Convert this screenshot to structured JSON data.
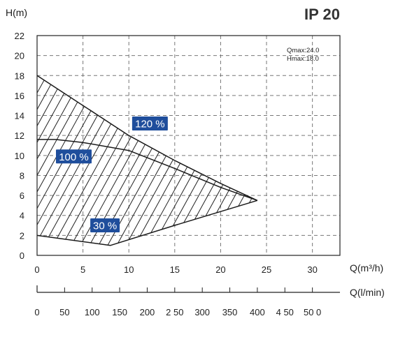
{
  "chart_data": {
    "type": "area",
    "title": "IP 20",
    "ylabel": "H(m)",
    "xlabel": "Q(m³/h)",
    "x2label": "Q(l/min)",
    "xlim": [
      0,
      33
    ],
    "ylim": [
      0,
      22
    ],
    "x_ticks": [
      "0",
      "5",
      "10",
      "15",
      "20",
      "25",
      "30"
    ],
    "y_ticks": [
      "0",
      "2",
      "4",
      "6",
      "8",
      "10",
      "12",
      "14",
      "16",
      "18",
      "20",
      "22"
    ],
    "x2_ticks": [
      "0",
      "50",
      "100",
      "150",
      "200",
      "250",
      "300",
      "350",
      "400",
      "450",
      "500"
    ],
    "x2_ticks_display": [
      "0",
      "50",
      "100",
      "150",
      "200",
      "2 50",
      "300",
      "350",
      "400",
      "4 50",
      "50 0"
    ],
    "grid": true,
    "annotation_lines": [
      "Qmax:24.0",
      "Hmax:18.0"
    ],
    "series": [
      {
        "name": "120 %",
        "x": [
          0,
          5,
          10,
          15,
          20,
          24
        ],
        "y": [
          18.0,
          15.0,
          12.0,
          9.5,
          7.2,
          5.5
        ]
      },
      {
        "name": "100 %",
        "x": [
          0,
          2,
          5,
          10,
          15,
          20,
          24
        ],
        "y": [
          11.6,
          11.6,
          11.3,
          10.5,
          8.7,
          6.8,
          5.5
        ]
      },
      {
        "name": "30 %",
        "x": [
          0,
          8,
          15,
          24
        ],
        "y": [
          2.0,
          1.0,
          3.0,
          5.5
        ]
      }
    ],
    "labels": [
      {
        "text": "120 %",
        "x": 12.3,
        "y": 13.2
      },
      {
        "text": "100 %",
        "x": 4.0,
        "y": 9.9
      },
      {
        "text": "30 %",
        "x": 7.4,
        "y": 3.0
      }
    ],
    "colors": {
      "label_bg": "#1f4e9c",
      "label_text": "#ffffff",
      "line": "#1a1a1a",
      "grid": "#777777",
      "title": "#333333"
    }
  }
}
